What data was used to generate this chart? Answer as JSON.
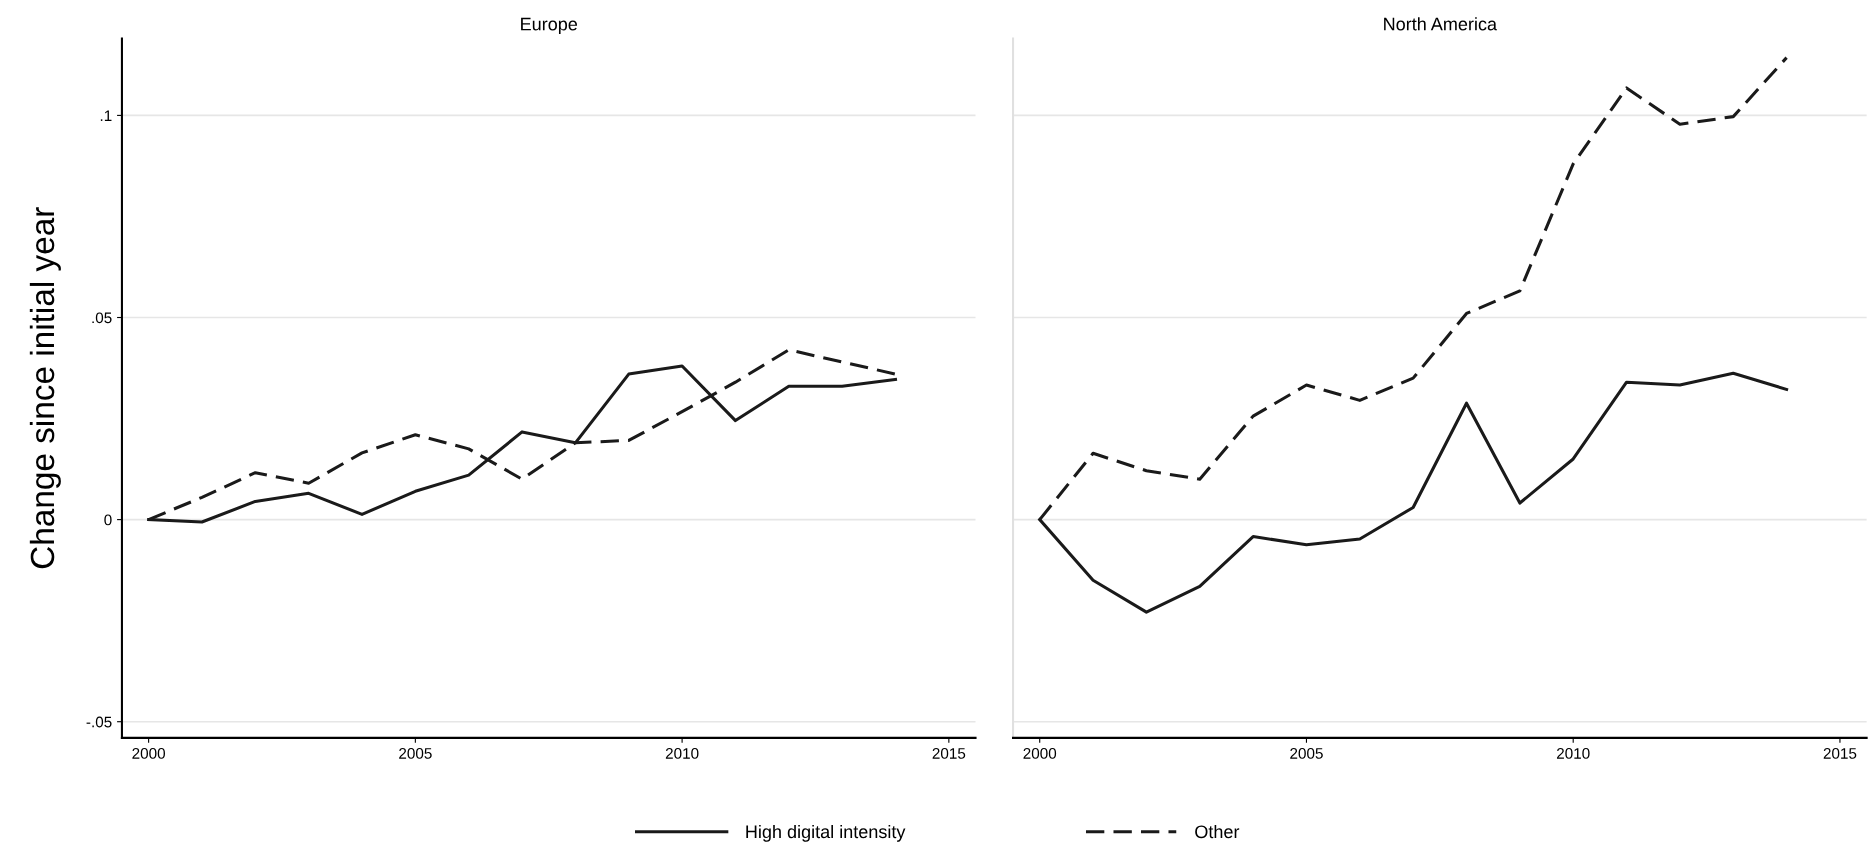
{
  "chart_data": [
    {
      "type": "line",
      "title": "Europe",
      "ylabel": "Change since initial year",
      "x": [
        2000,
        2001,
        2002,
        2003,
        2004,
        2005,
        2006,
        2007,
        2008,
        2009,
        2010,
        2011,
        2012,
        2013,
        2014
      ],
      "series": [
        {
          "name": "High digital intensity",
          "color": "#1a1a1a",
          "line_style": "solid",
          "values": [
            0,
            -0.0006,
            0.0045,
            0.0065,
            0.0013,
            0.007,
            0.011,
            0.0217,
            0.019,
            0.036,
            0.038,
            0.0245,
            0.033,
            0.033,
            0.0347
          ]
        },
        {
          "name": "Other",
          "color": "#1a1a1a",
          "line_style": "dashed",
          "values": [
            0,
            0.0055,
            0.0116,
            0.009,
            0.0165,
            0.021,
            0.0175,
            0.01,
            0.019,
            0.0196,
            0.0267,
            0.034,
            0.042,
            0.039,
            0.036
          ]
        }
      ],
      "xlim": [
        1999.5,
        2015.5
      ],
      "xticks": [
        2000,
        2005,
        2010,
        2015
      ],
      "ylim": [
        -0.054,
        0.119
      ],
      "yticks": [
        {
          "value": -0.05,
          "label": "-.05"
        },
        {
          "value": 0,
          "label": "0"
        },
        {
          "value": 0.05,
          "label": ".05"
        },
        {
          "value": 0.1,
          "label": ".1"
        }
      ],
      "grid": "y",
      "legend": "bottom"
    },
    {
      "type": "line",
      "title": "North America",
      "x": [
        2000,
        2001,
        2002,
        2003,
        2004,
        2005,
        2006,
        2007,
        2008,
        2009,
        2010,
        2011,
        2012,
        2013,
        2014
      ],
      "series": [
        {
          "color": "#1a1a1a",
          "line_style": "solid",
          "values": [
            0,
            -0.015,
            -0.0229,
            -0.0165,
            -0.0042,
            -0.0062,
            -0.0048,
            0.003,
            0.0288,
            0.0041,
            0.015,
            0.034,
            0.0333,
            0.0362,
            0.0322
          ]
        },
        {
          "color": "#1a1a1a",
          "line_style": "dashed",
          "values": [
            0,
            0.0164,
            0.0121,
            0.01,
            0.0256,
            0.0333,
            0.0295,
            0.035,
            0.051,
            0.0566,
            0.088,
            0.1068,
            0.0978,
            0.0997,
            0.1143
          ]
        }
      ],
      "xlim": [
        1999.5,
        2015.5
      ],
      "xticks": [
        2000,
        2005,
        2010,
        2015
      ],
      "ylim": [
        -0.054,
        0.119
      ],
      "yticks": [
        {
          "value": -0.05,
          "label": null
        },
        {
          "value": 0,
          "label": null
        },
        {
          "value": 0.05,
          "label": null
        },
        {
          "value": 0.1,
          "label": null
        }
      ],
      "grid": "y",
      "tick_labels": "x"
    }
  ]
}
